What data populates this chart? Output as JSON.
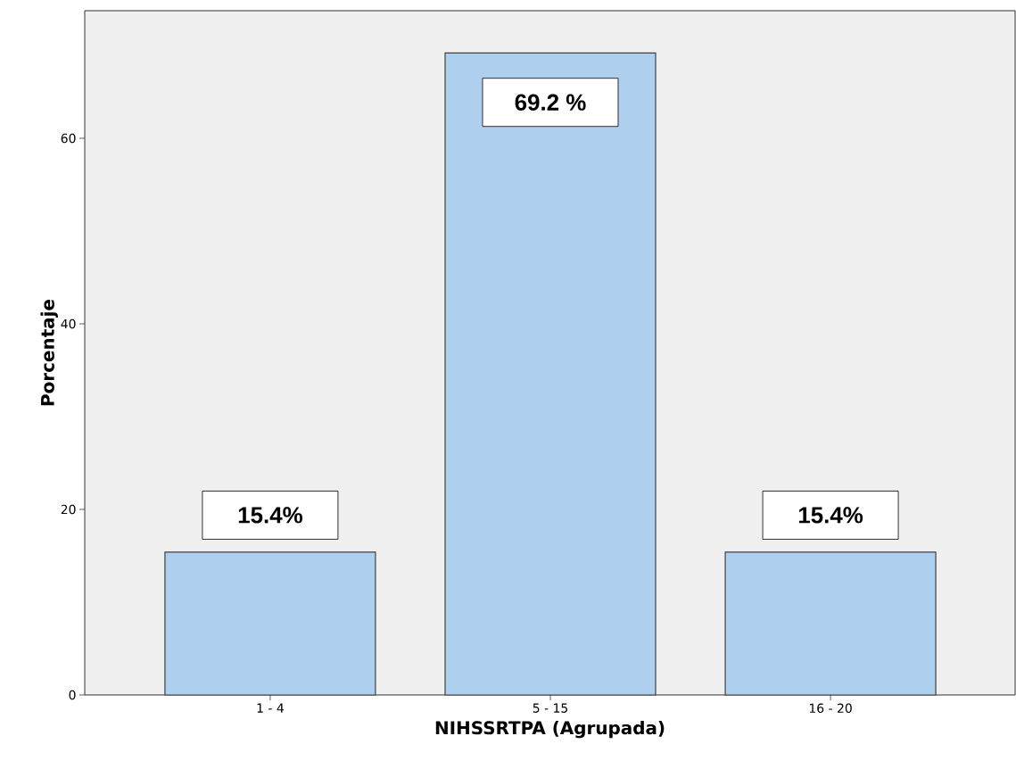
{
  "chart_data": {
    "type": "bar",
    "xlabel": "NIHSSRTPA (Agrupada)",
    "ylabel": "Porcentaje",
    "categories": [
      "1 - 4",
      "5 - 15",
      "16 - 20"
    ],
    "values": [
      15.4,
      69.2,
      15.4
    ],
    "value_labels": [
      "15.4%",
      "69.2 %",
      "15.4%"
    ],
    "color": "#aed0ee",
    "ylim": [
      0,
      73.75
    ],
    "yticks": [
      0,
      20,
      40,
      60
    ],
    "grid": false
  }
}
